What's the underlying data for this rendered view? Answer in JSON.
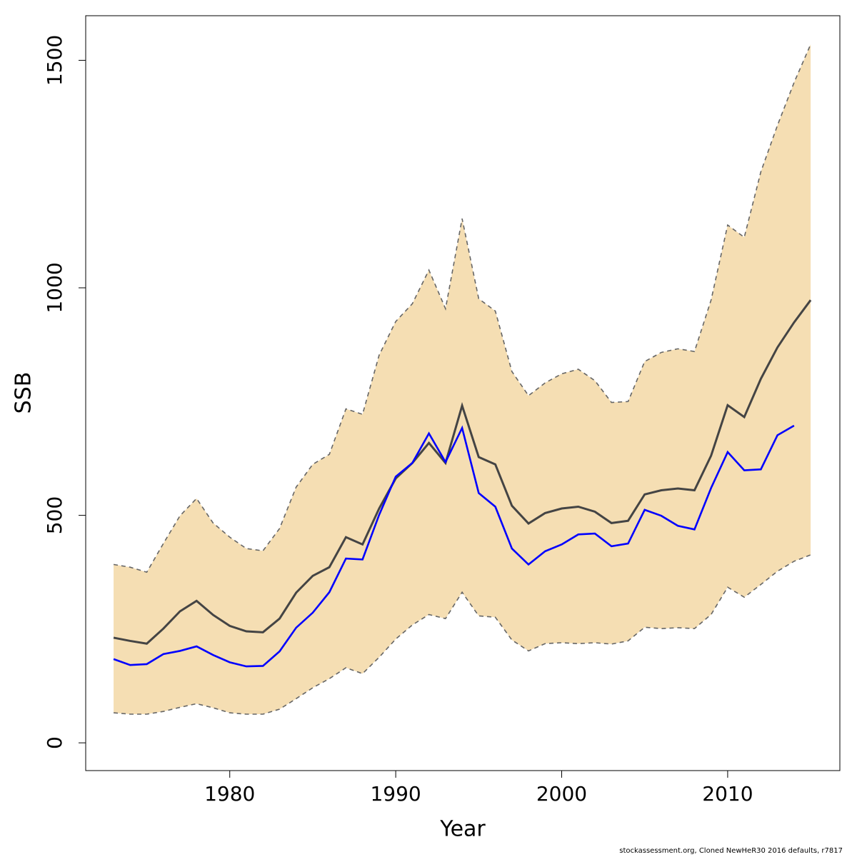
{
  "chart_data": {
    "type": "line",
    "xlabel": "Year",
    "ylabel": "SSB",
    "footnote": "stockassessment.org, Cloned NewHeR30 2016 defaults, r7817",
    "x": [
      1973,
      1974,
      1975,
      1976,
      1977,
      1978,
      1979,
      1980,
      1981,
      1982,
      1983,
      1984,
      1985,
      1986,
      1987,
      1988,
      1989,
      1990,
      1991,
      1992,
      1993,
      1994,
      1995,
      1996,
      1997,
      1998,
      1999,
      2000,
      2001,
      2002,
      2003,
      2004,
      2005,
      2006,
      2007,
      2008,
      2009,
      2010,
      2011,
      2012,
      2013,
      2014,
      2015
    ],
    "band": {
      "color": "#f5deb3",
      "edge_color": "#666666",
      "upper": [
        392,
        386,
        375,
        438,
        499,
        537,
        483,
        452,
        427,
        422,
        471,
        562,
        612,
        634,
        734,
        722,
        852,
        926,
        965,
        1039,
        954,
        1152,
        976,
        949,
        816,
        763,
        791,
        811,
        821,
        796,
        748,
        750,
        838,
        858,
        866,
        860,
        973,
        1138,
        1111,
        1255,
        1357,
        1451,
        1535
      ],
      "lower": [
        66,
        63,
        63,
        69,
        78,
        86,
        77,
        66,
        63,
        63,
        74,
        97,
        121,
        141,
        165,
        152,
        188,
        228,
        259,
        282,
        273,
        331,
        279,
        276,
        226,
        202,
        218,
        220,
        218,
        220,
        217,
        224,
        254,
        251,
        253,
        251,
        282,
        342,
        320,
        348,
        377,
        399,
        413
      ]
    },
    "series": [
      {
        "color": "#444444",
        "values": [
          231,
          224,
          218,
          251,
          289,
          312,
          281,
          257,
          245,
          243,
          273,
          330,
          367,
          386,
          452,
          436,
          515,
          581,
          615,
          659,
          615,
          741,
          628,
          612,
          521,
          482,
          505,
          515,
          519,
          508,
          483,
          488,
          546,
          555,
          559,
          555,
          631,
          742,
          716,
          800,
          869,
          924,
          973
        ]
      },
      {
        "color": "#0000ff",
        "values": [
          184,
          171,
          173,
          195,
          202,
          212,
          193,
          177,
          168,
          169,
          201,
          253,
          286,
          331,
          405,
          403,
          501,
          585,
          615,
          680,
          617,
          692,
          549,
          519,
          427,
          392,
          421,
          436,
          458,
          460,
          432,
          438,
          512,
          499,
          477,
          469,
          560,
          639,
          599,
          601,
          676,
          697,
          null
        ]
      }
    ],
    "xlim": [
      1971.32,
      2016.76
    ],
    "ylim": [
      -61,
      1598
    ],
    "xticks": [
      1980,
      1990,
      2000,
      2010
    ],
    "yticks": [
      0,
      500,
      1000,
      1500
    ]
  }
}
